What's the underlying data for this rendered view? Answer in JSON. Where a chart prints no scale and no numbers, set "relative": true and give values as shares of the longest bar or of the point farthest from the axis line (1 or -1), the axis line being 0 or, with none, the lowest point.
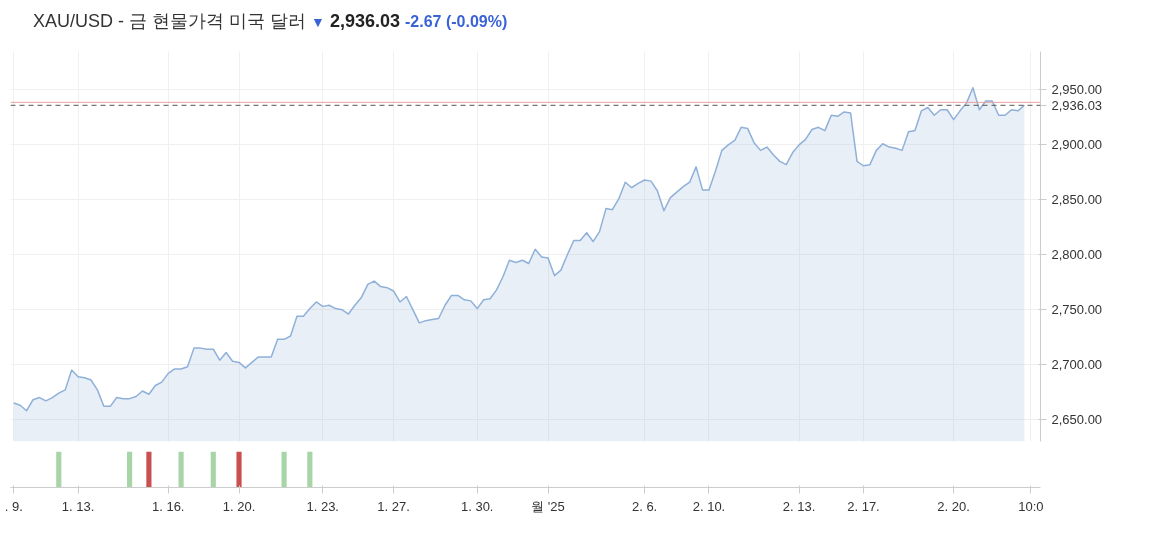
{
  "chart_data": [
    {
      "type": "area",
      "title": "XAU/USD - 금 현물가격 미국 달러",
      "annotations": [
        "▼",
        "2,936.03",
        "-2.67 (-0.09%)"
      ],
      "categories": [
        ". 9.",
        null,
        null,
        null,
        null,
        null,
        null,
        null,
        null,
        null,
        "1. 13.",
        null,
        null,
        null,
        null,
        null,
        null,
        null,
        null,
        null,
        null,
        null,
        null,
        null,
        "1. 16.",
        null,
        null,
        null,
        null,
        null,
        null,
        null,
        null,
        null,
        null,
        "1. 20.",
        null,
        null,
        null,
        null,
        null,
        null,
        null,
        null,
        null,
        null,
        null,
        null,
        "1. 23.",
        null,
        null,
        null,
        null,
        null,
        null,
        null,
        null,
        null,
        null,
        "1. 27.",
        null,
        null,
        null,
        null,
        null,
        null,
        null,
        null,
        null,
        null,
        null,
        null,
        "1. 30.",
        null,
        null,
        null,
        null,
        null,
        null,
        null,
        null,
        null,
        null,
        "월 '25",
        null,
        null,
        null,
        null,
        null,
        null,
        null,
        null,
        null,
        null,
        null,
        null,
        null,
        null,
        "2. 6.",
        null,
        null,
        null,
        null,
        null,
        null,
        null,
        null,
        null,
        "2. 10.",
        null,
        null,
        null,
        null,
        null,
        null,
        null,
        null,
        null,
        null,
        null,
        null,
        null,
        "2. 13.",
        null,
        null,
        null,
        null,
        null,
        null,
        null,
        null,
        null,
        "2. 17.",
        null,
        null,
        null,
        null,
        null,
        null,
        null,
        null,
        null,
        null,
        null,
        null,
        null,
        "2. 20.",
        null,
        null,
        null,
        null,
        null,
        null,
        null,
        null,
        null,
        null,
        null,
        "10:0",
        null
      ],
      "series": [
        {
          "color": "#8fb0d8",
          "values": [
            2665,
            2663,
            2658,
            2668,
            2670,
            2667,
            2670,
            2674,
            2677,
            2695,
            2689,
            2688,
            2686,
            2677,
            2662,
            2662,
            2670,
            2669,
            2669,
            2671,
            2676,
            2673,
            2681,
            2684,
            2692,
            2696,
            2696,
            2698,
            2715,
            2715,
            2714,
            2714,
            2704,
            2711,
            2703,
            2702,
            2697,
            2702,
            2707,
            2707,
            2707,
            2723,
            2723,
            2726,
            2744,
            2744,
            2751,
            2757,
            2753,
            2754,
            2751,
            2750,
            2746,
            2754,
            2761,
            2773,
            2776,
            2771,
            2770,
            2767,
            2757,
            2762,
            2750,
            2738,
            2740,
            2741,
            2742,
            2754,
            2763,
            2763,
            2759,
            2758,
            2751,
            2759,
            2760,
            2768,
            2780,
            2795,
            2793,
            2795,
            2792,
            2805,
            2798,
            2797,
            2781,
            2786,
            2800,
            2813,
            2813,
            2820,
            2812,
            2821,
            2842,
            2841,
            2851,
            2866,
            2861,
            2865,
            2868,
            2867,
            2858,
            2840,
            2852,
            2857,
            2862,
            2866,
            2880,
            2859,
            2859,
            2876,
            2895,
            2900,
            2904,
            2916,
            2915,
            2902,
            2895,
            2898,
            2891,
            2885,
            2882,
            2893,
            2900,
            2905,
            2914,
            2916,
            2913,
            2927,
            2926,
            2930,
            2929,
            2885,
            2881,
            2882,
            2895,
            2901,
            2898,
            2897,
            2895,
            2912,
            2913,
            2931,
            2934,
            2927,
            2932,
            2932,
            2923,
            2931,
            2938,
            2952,
            2932,
            2940,
            2940,
            2927,
            2927,
            2932,
            2931,
            2936.03,
            null,
            null
          ]
        }
      ],
      "ylim": [
        2630,
        2985
      ],
      "yticks": [
        {
          "value": 2650,
          "label": "2,650.00"
        },
        {
          "value": 2700,
          "label": "2,700.00"
        },
        {
          "value": 2750,
          "label": "2,750.00"
        },
        {
          "value": 2800,
          "label": "2,800.00"
        },
        {
          "value": 2850,
          "label": "2,850.00"
        },
        {
          "value": 2900,
          "label": "2,900.00"
        },
        {
          "value": 2950,
          "label": "2,950.00"
        }
      ],
      "grid": true,
      "ref_lines": [
        {
          "axis": "y",
          "value": 2938.7,
          "color": "#e8a0a0",
          "line_style": "solid"
        },
        {
          "axis": "y",
          "value": 2936.03,
          "label": "2,936.03",
          "color": "#555555",
          "line_style": "dashed"
        }
      ]
    },
    {
      "type": "bar",
      "relative": true,
      "categories": [
        null,
        null,
        null,
        null,
        null,
        null,
        null,
        null,
        null,
        null,
        null,
        null,
        null,
        null,
        null,
        null,
        null,
        null,
        null,
        null,
        null,
        null,
        null,
        null,
        null,
        null,
        null,
        null,
        null,
        null,
        null,
        null,
        null,
        null,
        null,
        null,
        null,
        null,
        null,
        null,
        null,
        null,
        null,
        null,
        null,
        null,
        null,
        null,
        null,
        null,
        null,
        null,
        null,
        null,
        null,
        null,
        null,
        null,
        null,
        null,
        null,
        null,
        null,
        null,
        null,
        null,
        null,
        null,
        null,
        null,
        null,
        null,
        null,
        null,
        null,
        null,
        null,
        null,
        null,
        null,
        null,
        null,
        null,
        null,
        null,
        null,
        null,
        null,
        null,
        null,
        null,
        null,
        null,
        null,
        null,
        null,
        null,
        null,
        null,
        null,
        null,
        null,
        null,
        null,
        null,
        null,
        null,
        null,
        null,
        null,
        null,
        null,
        null,
        null,
        null,
        null,
        null,
        null,
        null,
        null,
        null,
        null,
        null,
        null,
        null,
        null,
        null,
        null,
        null,
        null,
        null,
        null,
        null,
        null,
        null,
        null,
        null,
        null,
        null,
        null,
        null,
        null,
        null,
        null,
        null,
        null,
        null,
        null,
        null,
        null,
        null,
        null,
        null,
        null,
        null,
        null,
        null,
        null,
        null,
        null
      ],
      "values": [
        null,
        null,
        null,
        null,
        null,
        null,
        null,
        1,
        null,
        null,
        null,
        null,
        null,
        null,
        null,
        null,
        null,
        null,
        1,
        null,
        null,
        1,
        null,
        null,
        null,
        null,
        1,
        null,
        null,
        null,
        null,
        1,
        null,
        null,
        null,
        1,
        null,
        null,
        null,
        null,
        null,
        null,
        1,
        null,
        null,
        null,
        1,
        null,
        null,
        null,
        null,
        null,
        null,
        null,
        null,
        null,
        null,
        null,
        null,
        null,
        null,
        null,
        null,
        null,
        null,
        null,
        null,
        null,
        null,
        null,
        null,
        null,
        null,
        null,
        null,
        null,
        null,
        null,
        null,
        null,
        null,
        null,
        null,
        null,
        null,
        null,
        null,
        null,
        null,
        null,
        null,
        null,
        null,
        null,
        null,
        null,
        null,
        null,
        null,
        null,
        null,
        null,
        null,
        null,
        null,
        null,
        null,
        null,
        null,
        null,
        null,
        null,
        null,
        null,
        null,
        null,
        null,
        null,
        null,
        null,
        null,
        null,
        null,
        null,
        null,
        null,
        null,
        null,
        null,
        null,
        null,
        null,
        null,
        null,
        null,
        null,
        null,
        null,
        null,
        null,
        null,
        null,
        null,
        null,
        null,
        null,
        null,
        null,
        null,
        null,
        null,
        null,
        null,
        null,
        null,
        null,
        null,
        null,
        null,
        null
      ],
      "colors": [
        null,
        null,
        null,
        null,
        null,
        null,
        null,
        "#a8d5a8",
        null,
        null,
        null,
        null,
        null,
        null,
        null,
        null,
        null,
        null,
        "#a8d5a8",
        null,
        null,
        "#c9504f",
        null,
        null,
        null,
        null,
        "#a8d5a8",
        null,
        null,
        null,
        null,
        "#a8d5a8",
        null,
        null,
        null,
        "#c9504f",
        null,
        null,
        null,
        null,
        null,
        null,
        "#a8d5a8",
        null,
        null,
        null,
        "#a8d5a8",
        null,
        null,
        null,
        null,
        null,
        null,
        null,
        null,
        null,
        null,
        null,
        null,
        null,
        null,
        null,
        null,
        null,
        null,
        null,
        null,
        null,
        null,
        null,
        null,
        null,
        null,
        null,
        null,
        null,
        null,
        null,
        null,
        null,
        null,
        null,
        null,
        null,
        null,
        null,
        null,
        null,
        null,
        null,
        null,
        null,
        null,
        null,
        null,
        null,
        null,
        null,
        null,
        null,
        null,
        null,
        null,
        null,
        null,
        null,
        null,
        null,
        null,
        null,
        null,
        null,
        null,
        null,
        null,
        null,
        null,
        null,
        null,
        null,
        null,
        null,
        null,
        null,
        null,
        null,
        null,
        null,
        null,
        null,
        null,
        null,
        null,
        null,
        null,
        null,
        null,
        null,
        null,
        null,
        null,
        null,
        null,
        null,
        null,
        null,
        null,
        null,
        null,
        null,
        null,
        null,
        null,
        null,
        null,
        null,
        null,
        null,
        null,
        null
      ]
    }
  ]
}
